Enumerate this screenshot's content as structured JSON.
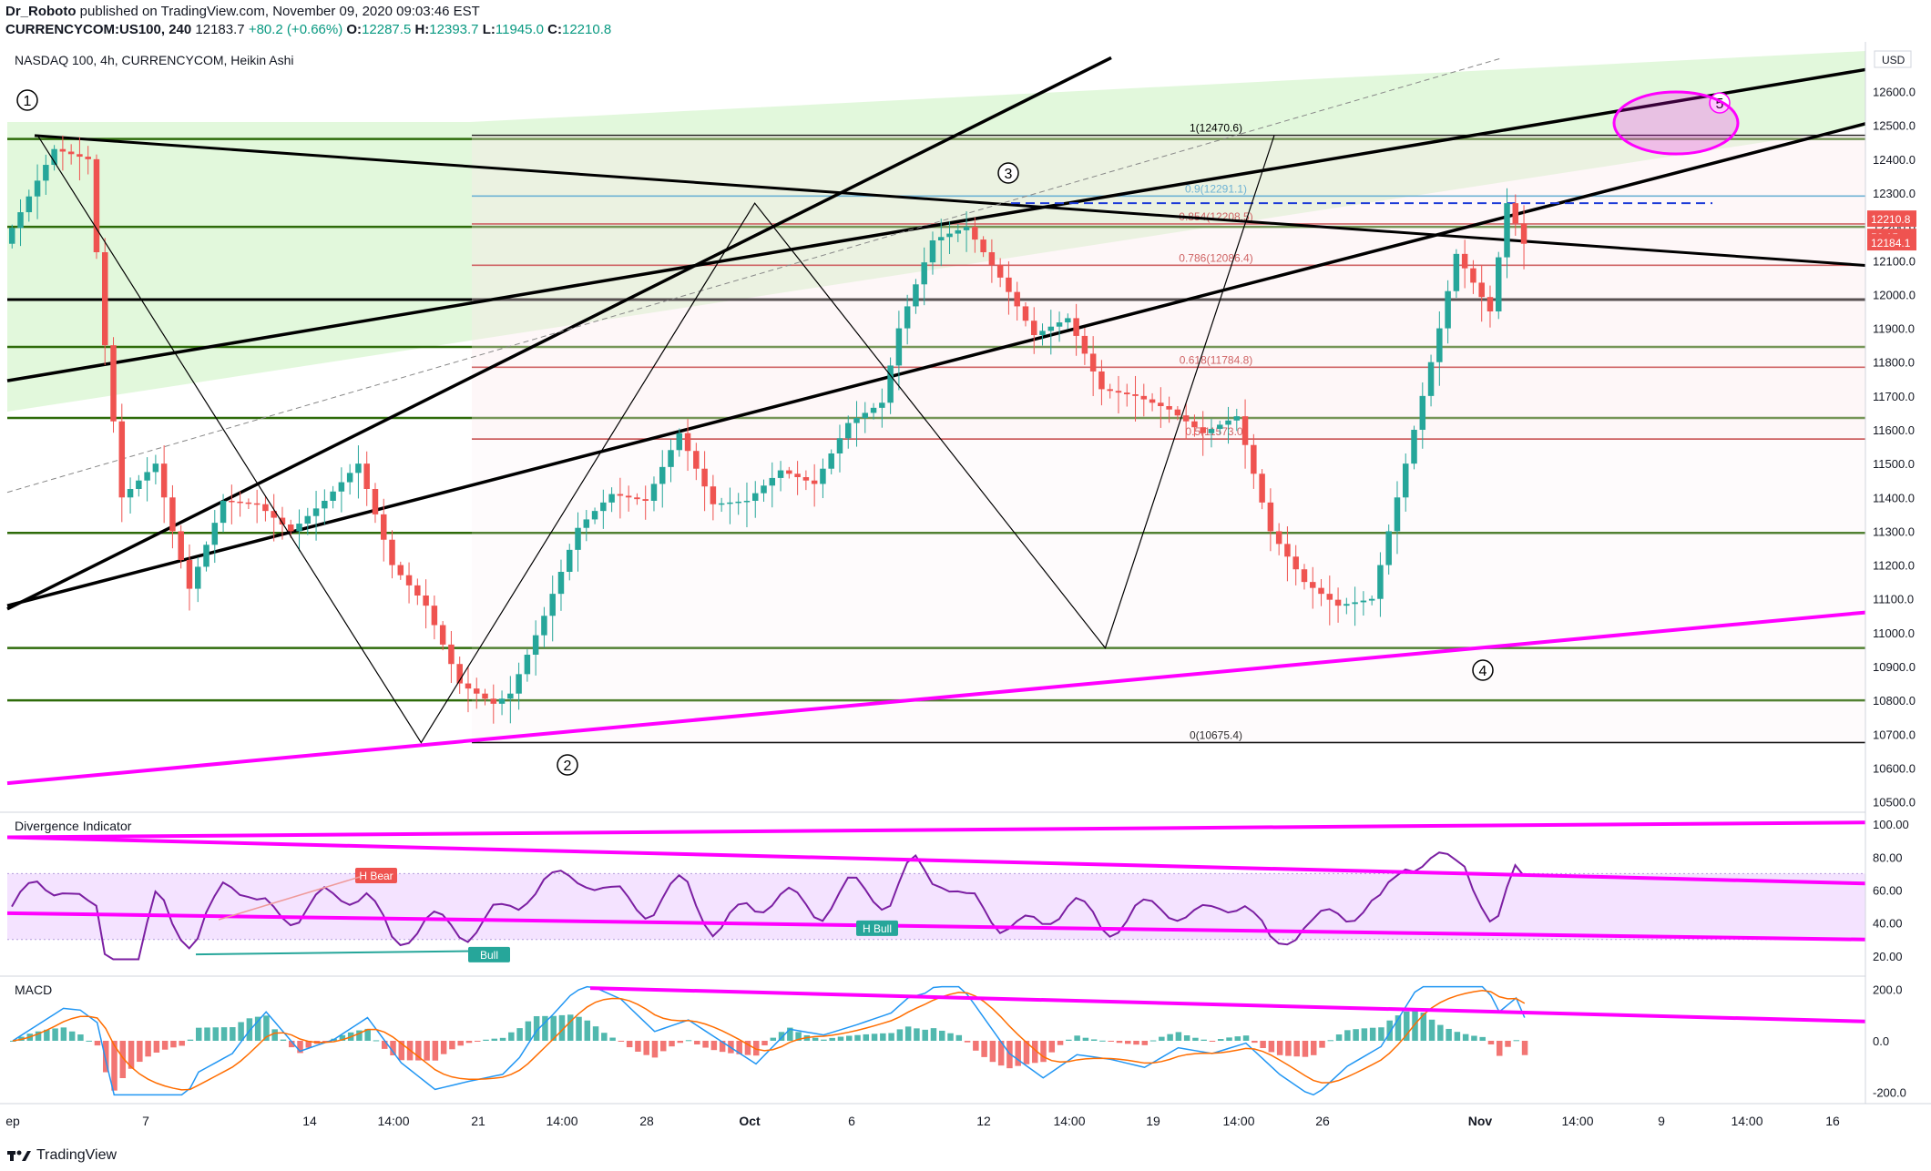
{
  "header": {
    "publisher": "Dr_Roboto",
    "published_text": "published on TradingView.com, November 09, 2020 09:03:46 EST",
    "symbol": "CURRENCYCOM:US100, 240",
    "last": "12183.7",
    "change": "+80.2 (+0.66%)",
    "o_label": "O:",
    "o": "12287.5",
    "h_label": "H:",
    "h": "12393.7",
    "l_label": "L:",
    "l": "11945.0",
    "c_label": "C:",
    "c": "12210.8"
  },
  "footer": {
    "brand": "TradingView"
  },
  "colors": {
    "bull": "#26a69a",
    "bear": "#ef5350",
    "green_line": "#2e6b0a",
    "trend": "#000000",
    "magenta": "#ff00ff",
    "fib_red": "#b71c1c",
    "fib_blue": "#2196c8",
    "zone_green": "#d8f5d0",
    "rsi_band": "#f1dcff"
  },
  "chart_data": [
    {
      "type": "candlestick",
      "title": "NASDAQ 100, 4h, CURRENCYCOM, Heikin Ashi",
      "y_unit": "USD",
      "ylim": [
        10480,
        12720
      ],
      "yticks": [
        10500,
        10600,
        10700,
        10800,
        10900,
        11000,
        11100,
        11200,
        11300,
        11400,
        11500,
        11600,
        11700,
        11800,
        11900,
        12000,
        12100,
        12200,
        12300,
        12400,
        12500,
        12600
      ],
      "xtick_labels": [
        "ep",
        "7",
        "14",
        "14:00",
        "21",
        "14:00",
        "28",
        "Oct",
        "6",
        "12",
        "14:00",
        "19",
        "14:00",
        "26",
        "Nov",
        "14:00",
        "9",
        "14:00",
        "16"
      ],
      "price_labels": [
        {
          "text": "12210.8",
          "color": "#ef5350"
        },
        {
          "text": "56:15",
          "color": "#ef5350"
        },
        {
          "text": "12184.1",
          "color": "#ef5350"
        }
      ],
      "fib_levels": [
        {
          "label": "1(12470.6)",
          "value": 12470.6
        },
        {
          "label": "0.9(12291.1)",
          "value": 12291.1
        },
        {
          "label": "0.854(12208.5)",
          "value": 12208.5
        },
        {
          "label": "0.786(12086.4)",
          "value": 12086.4
        },
        {
          "label": "0.618(11784.8)",
          "value": 11784.8
        },
        {
          "label": "0.5(11573.0)",
          "value": 11573.0
        },
        {
          "label": "0(10675.4)",
          "value": 10675.4
        }
      ],
      "horizontal_levels": [
        12460,
        12200,
        11845,
        11635,
        11295,
        10955,
        10800
      ],
      "black_level": 11985,
      "wave_labels": [
        "1",
        "2",
        "3",
        "4",
        "5"
      ],
      "wave_points": [
        [
          10.5,
          12470
        ],
        [
          62,
          10675
        ],
        [
          120,
          12270
        ],
        [
          174,
          10955
        ],
        [
          200,
          12460
        ]
      ],
      "candles": [],
      "series_note": ""
    },
    {
      "type": "line",
      "title": "Divergence Indicator",
      "ylim": [
        10,
        105
      ],
      "yticks": [
        20,
        40,
        60,
        80,
        100
      ],
      "labels": [
        "H Bear",
        "H Bull",
        "Bull"
      ]
    },
    {
      "type": "bar",
      "title": "MACD",
      "ylim": [
        -230,
        230
      ],
      "yticks": [
        -200,
        0,
        200
      ],
      "tick_labels": [
        "-200.0",
        "0.0",
        "200.0"
      ]
    }
  ]
}
